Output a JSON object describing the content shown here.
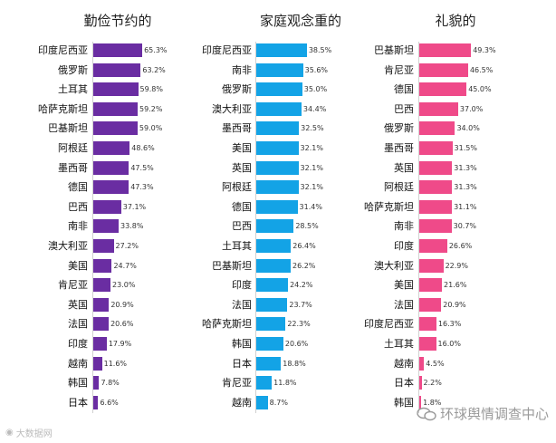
{
  "colors": {
    "purple": "#6a2da2",
    "cyan": "#13a3e6",
    "pink": "#ef4a89"
  },
  "watermarks": {
    "left": "大数据网",
    "right": "环球舆情调查中心"
  },
  "chart_data": [
    {
      "type": "bar",
      "title": "勤俭节约的",
      "categories": [
        "印度尼西亚",
        "俄罗斯",
        "土耳其",
        "哈萨克斯坦",
        "巴基斯坦",
        "阿根廷",
        "墨西哥",
        "德国",
        "巴西",
        "南非",
        "澳大利亚",
        "美国",
        "肯尼亚",
        "英国",
        "法国",
        "印度",
        "越南",
        "韩国",
        "日本"
      ],
      "values": [
        65.3,
        63.2,
        59.8,
        59.2,
        59.0,
        48.6,
        47.5,
        47.3,
        37.1,
        33.8,
        27.2,
        24.7,
        23.0,
        20.9,
        20.6,
        17.9,
        11.6,
        7.8,
        6.6
      ],
      "labels": [
        "65.3%",
        "63.2%",
        "59.8%",
        "59.2%",
        "59.0%",
        "48.6%",
        "47.5%",
        "47.3%",
        "37.1%",
        "33.8%",
        "27.2%",
        "24.7%",
        "23.0%",
        "20.9%",
        "20.6%",
        "17.9%",
        "11.6%",
        "7.8%",
        "6.6%"
      ],
      "ylim": [
        0,
        70
      ]
    },
    {
      "type": "bar",
      "title": "家庭观念重的",
      "categories": [
        "印度尼西亚",
        "南非",
        "俄罗斯",
        "澳大利亚",
        "墨西哥",
        "美国",
        "英国",
        "阿根廷",
        "德国",
        "巴西",
        "土耳其",
        "巴基斯坦",
        "印度",
        "法国",
        "哈萨克斯坦",
        "韩国",
        "日本",
        "肯尼亚",
        "越南"
      ],
      "values": [
        38.5,
        35.6,
        35.0,
        34.4,
        32.5,
        32.1,
        32.1,
        32.1,
        31.4,
        28.5,
        26.4,
        26.2,
        24.2,
        23.7,
        22.3,
        20.6,
        18.8,
        11.8,
        8.7
      ],
      "labels": [
        "38.5%",
        "35.6%",
        "35.0%",
        "34.4%",
        "32.5%",
        "32.1%",
        "32.1%",
        "32.1%",
        "31.4%",
        "28.5%",
        "26.4%",
        "26.2%",
        "24.2%",
        "23.7%",
        "22.3%",
        "20.6%",
        "18.8%",
        "11.8%",
        "8.7%"
      ],
      "ylim": [
        0,
        40
      ]
    },
    {
      "type": "bar",
      "title": "礼貌的",
      "categories": [
        "巴基斯坦",
        "肯尼亚",
        "德国",
        "巴西",
        "俄罗斯",
        "墨西哥",
        "英国",
        "阿根廷",
        "哈萨克斯坦",
        "南非",
        "印度",
        "澳大利亚",
        "美国",
        "法国",
        "印度尼西亚",
        "土耳其",
        "越南",
        "日本",
        "韩国"
      ],
      "values": [
        49.3,
        46.5,
        45.0,
        37.0,
        34.0,
        31.5,
        31.3,
        31.3,
        31.1,
        30.7,
        26.6,
        22.9,
        21.6,
        20.9,
        16.3,
        16.0,
        4.5,
        2.2,
        1.8
      ],
      "labels": [
        "49.3%",
        "46.5%",
        "45.0%",
        "37.0%",
        "34.0%",
        "31.5%",
        "31.3%",
        "31.3%",
        "31.1%",
        "30.7%",
        "26.6%",
        "22.9%",
        "21.6%",
        "20.9%",
        "16.3%",
        "16.0%",
        "4.5%",
        "2.2%",
        "1.8%"
      ],
      "ylim": [
        0,
        50
      ]
    }
  ]
}
